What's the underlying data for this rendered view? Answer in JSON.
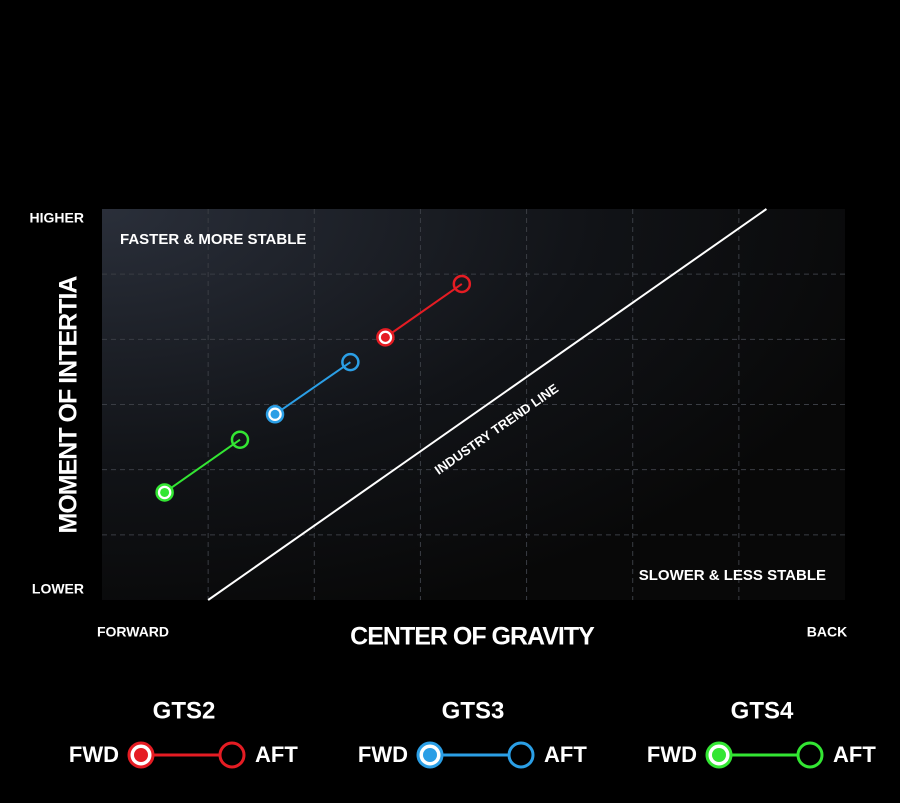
{
  "chart_data": {
    "type": "scatter",
    "xlabel": "CENTER OF GRAVITY",
    "ylabel": "MOMENT OF INTERTIA",
    "x_low_label": "FORWARD",
    "x_high_label": "BACK",
    "y_low_label": "LOWER",
    "y_high_label": "HIGHER",
    "annotations": [
      "FASTER & MORE STABLE",
      "SLOWER & LESS STABLE"
    ],
    "xlim": [
      0,
      7
    ],
    "ylim": [
      0,
      6
    ],
    "xticks": [
      1,
      2,
      3,
      4,
      5,
      6
    ],
    "yticks": [
      1,
      2,
      3,
      4,
      5
    ],
    "grid": true,
    "trend_line": {
      "label": "INDUSTRY TREND LINE",
      "x": [
        1.0,
        6.26
      ],
      "y": [
        0,
        6
      ]
    },
    "series": [
      {
        "name": "GTS2",
        "color": "#e51c23",
        "labels": [
          "FWD",
          "AFT"
        ],
        "x": [
          2.67,
          3.39
        ],
        "values": [
          4.03,
          4.85
        ]
      },
      {
        "name": "GTS3",
        "color": "#2b9fe6",
        "labels": [
          "FWD",
          "AFT"
        ],
        "x": [
          1.63,
          2.34
        ],
        "values": [
          2.85,
          3.65
        ]
      },
      {
        "name": "GTS4",
        "color": "#33e633",
        "labels": [
          "FWD",
          "AFT"
        ],
        "x": [
          0.59,
          1.3
        ],
        "values": [
          1.65,
          2.46
        ]
      }
    ]
  }
}
